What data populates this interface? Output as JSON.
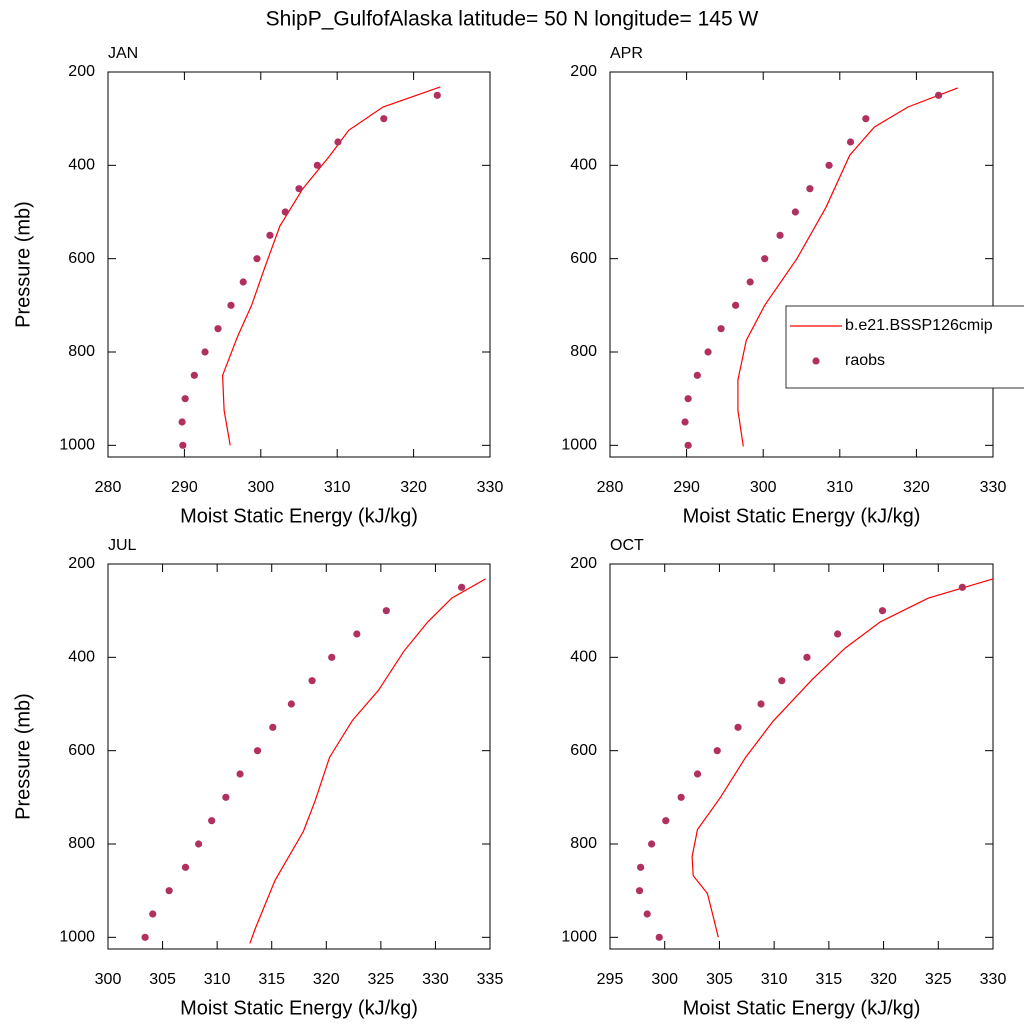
{
  "title": "ShipP_GulfofAlaska  latitude= 50 N longitude= 145 W",
  "chart_data": [
    {
      "type": "line",
      "title": "JAN",
      "xlabel": "Moist Static Energy (kJ/kg)",
      "ylabel": "Pressure (mb)",
      "xlim": [
        280,
        330
      ],
      "xticks": [
        280,
        290,
        300,
        310,
        320,
        330
      ],
      "ylim": [
        200,
        1025
      ],
      "yticks": [
        200,
        400,
        600,
        800,
        1000
      ],
      "y_reverse": true,
      "series": [
        {
          "color": "#ff0000",
          "style": "line",
          "x": [
            323.5,
            316,
            311.5,
            309,
            305.5,
            302.5,
            300.5,
            298.8,
            297,
            295,
            295.2,
            296
          ],
          "y": [
            232,
            275,
            325,
            380,
            450,
            530,
            620,
            700,
            765,
            850,
            925,
            1000
          ]
        },
        {
          "color": "#b03060",
          "style": "markers",
          "x": [
            289.8,
            289.7,
            290.1,
            291.3,
            292.7,
            294.4,
            296.1,
            297.7,
            299.5,
            301.2,
            303.2,
            305,
            307.4,
            310.1,
            316.1,
            323.1
          ],
          "y": [
            1000,
            950,
            900,
            850,
            800,
            750,
            700,
            650,
            600,
            550,
            500,
            450,
            400,
            350,
            300,
            250
          ]
        }
      ]
    },
    {
      "type": "line",
      "title": "APR",
      "xlabel": "Moist Static Energy (kJ/kg)",
      "xlim": [
        280,
        330
      ],
      "xticks": [
        280,
        290,
        300,
        310,
        320,
        330
      ],
      "ylim": [
        200,
        1025
      ],
      "yticks": [
        200,
        400,
        600,
        800,
        1000
      ],
      "y_reverse": true,
      "legend": "right",
      "series": [
        {
          "name": "b.e21.BSSP126cmip",
          "color": "#ff0000",
          "style": "line",
          "x": [
            325.4,
            318.9,
            314.5,
            311.3,
            308.2,
            304.4,
            300.2,
            297.8,
            296.7,
            296.7,
            297.4
          ],
          "y": [
            234,
            275,
            318,
            378,
            490,
            600,
            700,
            775,
            860,
            925,
            1002
          ]
        },
        {
          "name": "raobs",
          "color": "#b03060",
          "style": "markers",
          "x": [
            290.2,
            289.8,
            290.2,
            291.4,
            292.8,
            294.5,
            296.4,
            298.3,
            300.2,
            302.2,
            304.2,
            306.1,
            308.6,
            311.4,
            313.4,
            322.9
          ],
          "y": [
            1000,
            950,
            900,
            850,
            800,
            750,
            700,
            650,
            600,
            550,
            500,
            450,
            400,
            350,
            300,
            250
          ]
        }
      ]
    },
    {
      "type": "line",
      "title": "JUL",
      "xlabel": "Moist Static Energy (kJ/kg)",
      "ylabel": "Pressure (mb)",
      "xlim": [
        300,
        335
      ],
      "xticks": [
        300,
        305,
        310,
        315,
        320,
        325,
        330,
        335
      ],
      "ylim": [
        200,
        1025
      ],
      "yticks": [
        200,
        400,
        600,
        800,
        1000
      ],
      "y_reverse": true,
      "series": [
        {
          "color": "#ff0000",
          "style": "line",
          "x": [
            334.6,
            331.5,
            329.3,
            327.1,
            324.8,
            322.4,
            320.3,
            319,
            317.9,
            315.3,
            313.5,
            313
          ],
          "y": [
            232,
            273,
            324,
            387,
            470,
            535,
            614,
            706,
            773,
            878,
            981,
            1013
          ]
        },
        {
          "color": "#b03060",
          "style": "markers",
          "x": [
            303.4,
            304.1,
            305.6,
            307.1,
            308.3,
            309.5,
            310.8,
            312.1,
            313.7,
            315.1,
            316.8,
            318.7,
            320.5,
            322.8,
            325.5,
            332.4
          ],
          "y": [
            1000,
            950,
            900,
            850,
            800,
            750,
            700,
            650,
            600,
            550,
            500,
            450,
            400,
            350,
            300,
            250
          ]
        }
      ]
    },
    {
      "type": "line",
      "title": "OCT",
      "xlabel": "Moist Static Energy (kJ/kg)",
      "xlim": [
        295,
        330
      ],
      "xticks": [
        295,
        300,
        305,
        310,
        315,
        320,
        325,
        330
      ],
      "ylim": [
        200,
        1025
      ],
      "yticks": [
        200,
        400,
        600,
        800,
        1000
      ],
      "y_reverse": true,
      "series": [
        {
          "color": "#ff0000",
          "style": "line",
          "x": [
            330,
            324.1,
            319.7,
            316.5,
            313.5,
            309.9,
            307.4,
            305.1,
            303,
            302.5,
            302.6,
            303.9,
            304.4,
            304.9
          ],
          "y": [
            232,
            273,
            324,
            380,
            447,
            537,
            614,
            700,
            769,
            827,
            868,
            906,
            953,
            1000
          ]
        },
        {
          "color": "#b03060",
          "style": "markers",
          "x": [
            299.5,
            298.4,
            297.7,
            297.8,
            298.8,
            300.1,
            301.5,
            303,
            304.8,
            306.7,
            308.8,
            310.7,
            313,
            315.8,
            319.9,
            327.2
          ],
          "y": [
            1000,
            950,
            900,
            850,
            800,
            750,
            700,
            650,
            600,
            550,
            500,
            450,
            400,
            350,
            300,
            250
          ]
        }
      ]
    }
  ]
}
